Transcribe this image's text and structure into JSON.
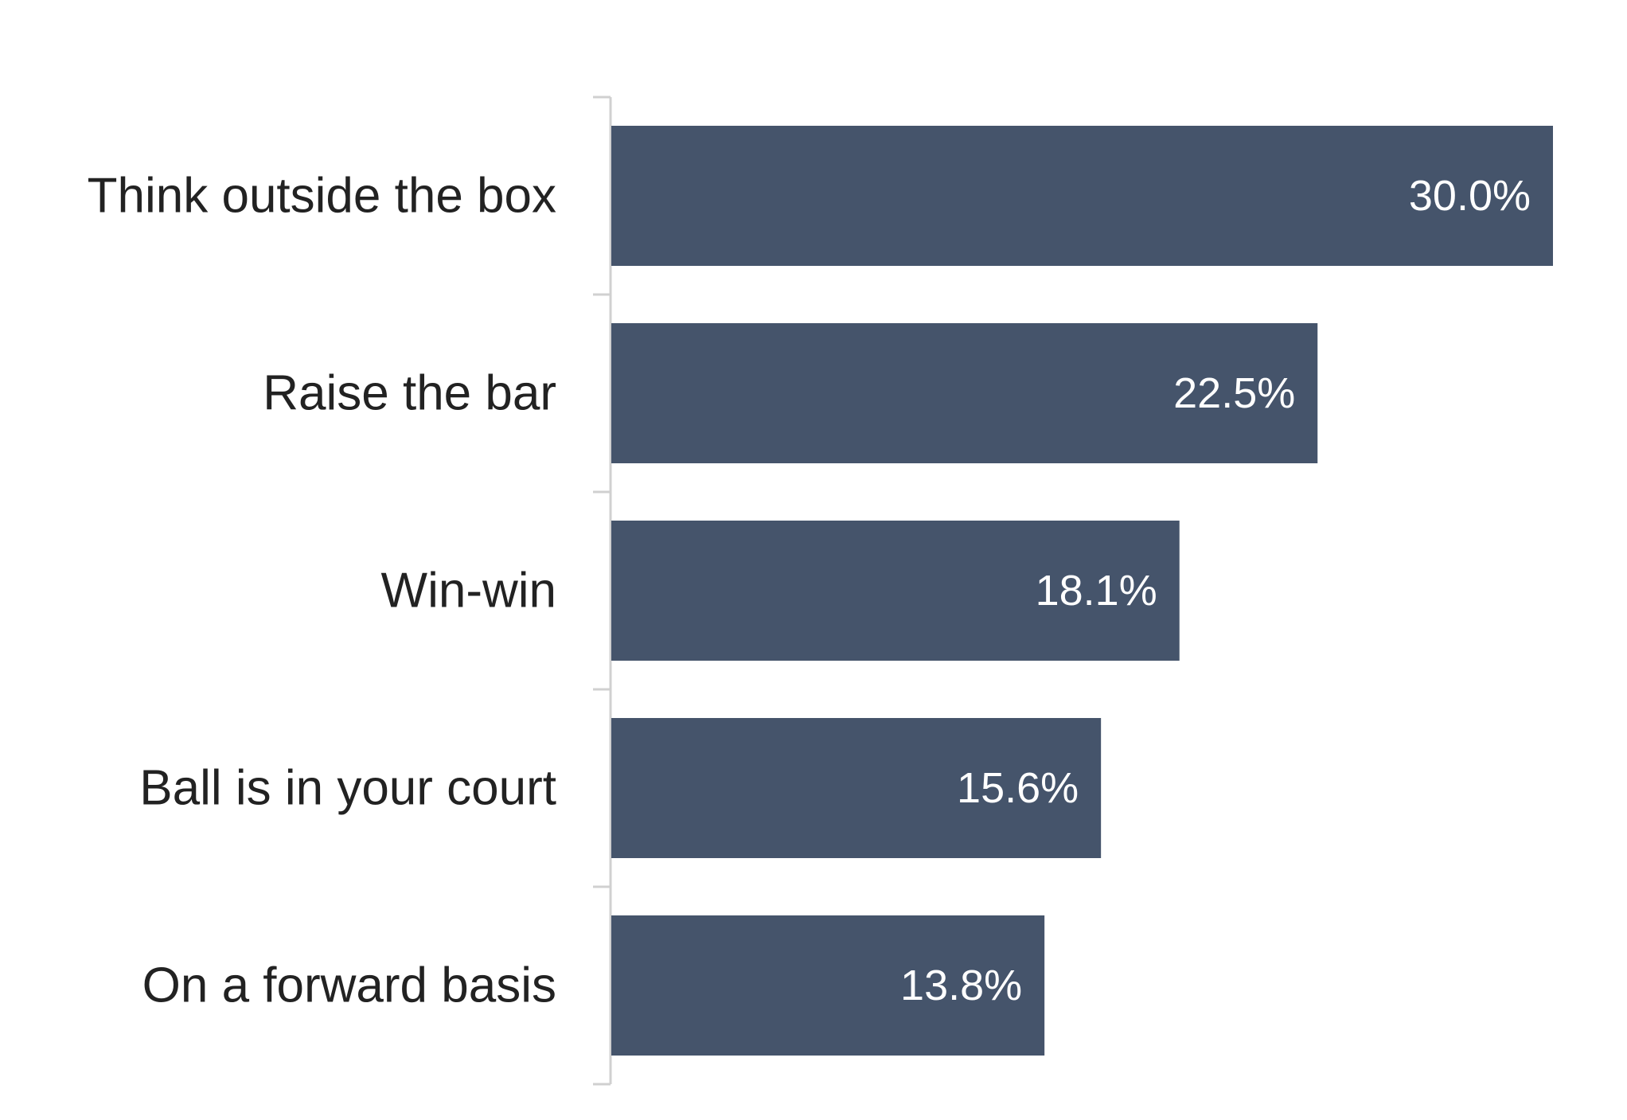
{
  "chart_data": {
    "type": "bar",
    "orientation": "horizontal",
    "title": "",
    "xlabel": "",
    "ylabel": "",
    "categories": [
      "Think outside the box",
      "Raise the bar",
      "Win-win",
      "Ball is in your court",
      "On a forward basis"
    ],
    "values": [
      30.0,
      22.5,
      18.1,
      15.6,
      13.8
    ],
    "value_labels": [
      "30.0%",
      "22.5%",
      "18.1%",
      "15.6%",
      "13.8%"
    ],
    "xlim": [
      0,
      30.0
    ],
    "grid": false,
    "legend": "none",
    "colors": {
      "bar": "#45546b",
      "axis": "#d0d0d0",
      "category_text": "#222222",
      "value_text": "#ffffff"
    }
  }
}
